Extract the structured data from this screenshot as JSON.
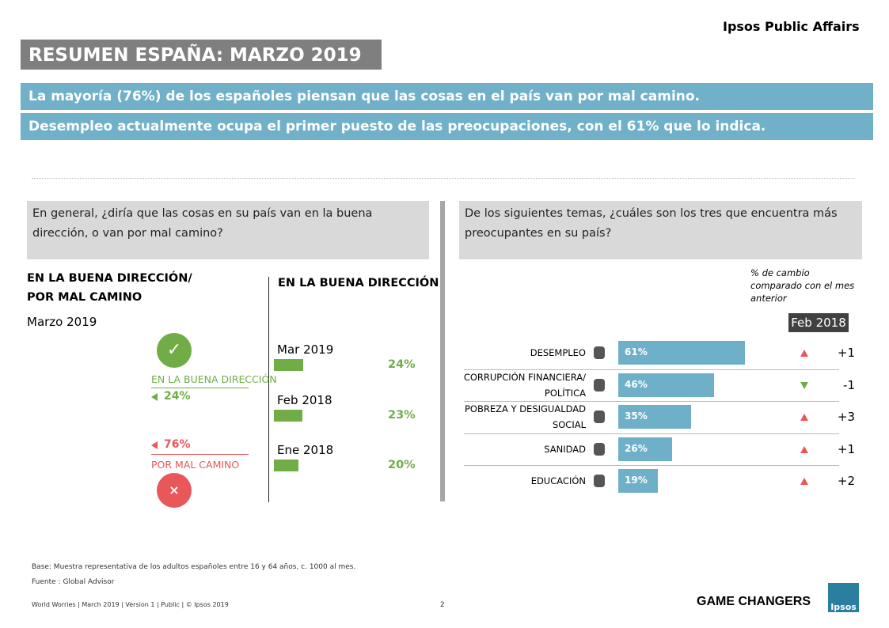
{
  "header": {
    "brand": "Ipsos Public Affairs",
    "title": "RESUMEN ESPAÑA: MARZO 2019",
    "highlights": [
      "La mayoría (76%) de los españoles piensan que las cosas en el país van por mal camino.",
      "Desempleo actualmente ocupa el primer puesto de las preocupaciones, con el 61% que lo indica."
    ]
  },
  "questions": [
    "En general, ¿diría que las cosas en su país van en la buena dirección, o van por mal camino?",
    "De los siguientes temas, ¿cuáles son los tres que encuentra más preocupantes en su país?"
  ],
  "chart_data": [
    {
      "type": "split",
      "title": [
        "EN LA BUENA DIRECCIÓN/",
        "POR MAL CAMINO"
      ],
      "subtitle": "Marzo 2019",
      "categories": [
        "EN LA BUENA DIRECCIÓN",
        "POR MAL CAMINO"
      ],
      "values": [
        24,
        76
      ],
      "value_labels": [
        "24%",
        "76%"
      ],
      "colors": [
        "#70ad47",
        "#e8575a"
      ]
    },
    {
      "type": "bar",
      "title": "EN LA BUENA DIRECCIÓN",
      "categories": [
        "Mar 2019",
        "Feb 2018",
        "Ene 2018"
      ],
      "values": [
        24,
        23,
        20
      ],
      "value_labels": [
        "24%",
        "23%",
        "20%"
      ],
      "color": "#70ad47"
    },
    {
      "type": "hbar",
      "note": "% de cambio comparado con el mes anterior",
      "categories": [
        "DESEMPLEO",
        "CORRUPCIÓN FINANCIERA/ POLÍTICA",
        "POBREZA Y DESIGUALDAD SOCIAL",
        "SANIDAD",
        "EDUCACIÓN"
      ],
      "values": [
        61,
        46,
        35,
        26,
        19
      ],
      "value_labels": [
        "61%",
        "46%",
        "35%",
        "26%",
        "19%"
      ],
      "color": "#6fb0c9",
      "change": {
        "header": "Feb 2018",
        "values": [
          1,
          -1,
          3,
          1,
          2
        ],
        "value_labels": [
          "+1",
          "-1",
          "+3",
          "+1",
          "+2"
        ],
        "colors": [
          "#e8575a",
          "#70ad47"
        ]
      }
    }
  ],
  "footer": {
    "base": "Base: Muestra representativa de los adultos españoles entre 16 y 64 años, c. 1000 al mes.",
    "source": "Fuente : Global Advisor",
    "note": "World Worries | March 2019 | Version 1 | Public | © Ipsos 2019",
    "page": "2",
    "tagline": "GAME CHANGERS",
    "logo": "Ipsos"
  }
}
